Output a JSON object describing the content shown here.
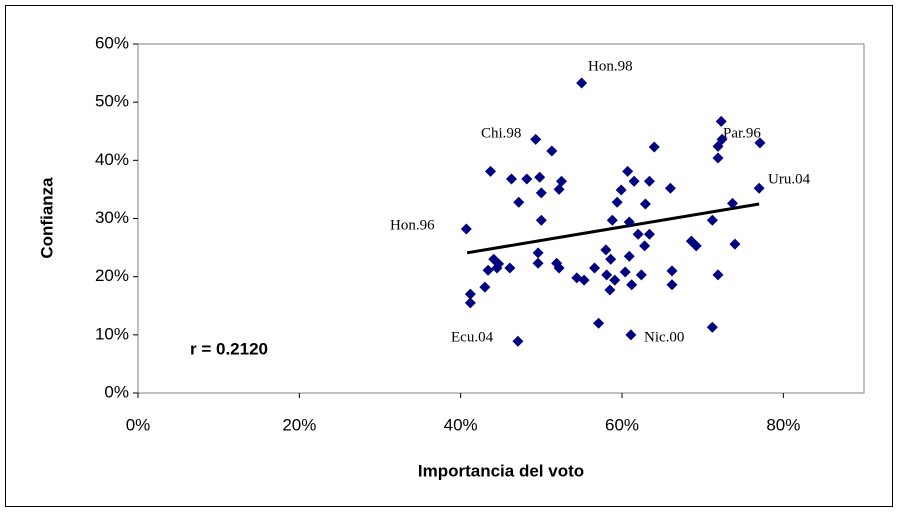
{
  "chart_data": {
    "type": "scatter",
    "xlabel": "Importancia del voto",
    "ylabel": "Confianza",
    "xlim": [
      0,
      90
    ],
    "ylim": [
      0,
      60
    ],
    "xticks": [
      {
        "value": 0,
        "label": "0%"
      },
      {
        "value": 20,
        "label": "20%"
      },
      {
        "value": 40,
        "label": "40%"
      },
      {
        "value": 60,
        "label": "60%"
      },
      {
        "value": 80,
        "label": "80%"
      }
    ],
    "yticks": [
      {
        "value": 0,
        "label": "0%"
      },
      {
        "value": 10,
        "label": "10%"
      },
      {
        "value": 20,
        "label": "20%"
      },
      {
        "value": 30,
        "label": "30%"
      },
      {
        "value": 40,
        "label": "40%"
      },
      {
        "value": 50,
        "label": "50%"
      },
      {
        "value": 60,
        "label": "60%"
      }
    ],
    "color": "#000080",
    "x": [
      55.0,
      72.3,
      72.4,
      71.9,
      77.1,
      71.9,
      49.3,
      51.3,
      64.0,
      43.7,
      46.3,
      48.2,
      49.8,
      52.5,
      52.2,
      60.7,
      61.5,
      63.4,
      59.9,
      50.0,
      47.2,
      59.4,
      62.9,
      66.0,
      77.0,
      73.7,
      71.2,
      50.0,
      58.8,
      60.9,
      62.0,
      63.4,
      60.9,
      62.8,
      58.0,
      49.6,
      68.6,
      69.2,
      74.0,
      58.6,
      44.1,
      44.7,
      49.6,
      51.9,
      52.2,
      56.6,
      58.1,
      60.4,
      62.4,
      66.2,
      71.9,
      44.5,
      46.1,
      43.4,
      54.4,
      55.3,
      59.1,
      61.2,
      58.5,
      66.2,
      43.0,
      41.2,
      41.2,
      57.1,
      61.1,
      71.2,
      47.1,
      40.7
    ],
    "values": [
      53.3,
      46.7,
      43.6,
      42.4,
      43.0,
      40.4,
      43.6,
      41.6,
      42.3,
      38.1,
      36.8,
      36.8,
      37.1,
      36.4,
      35.0,
      38.1,
      36.4,
      36.4,
      34.9,
      34.4,
      32.8,
      32.8,
      32.5,
      35.2,
      35.2,
      32.6,
      29.7,
      29.7,
      29.7,
      29.4,
      27.3,
      27.3,
      23.5,
      25.3,
      24.6,
      24.1,
      26.1,
      25.3,
      25.6,
      23.0,
      23.0,
      22.2,
      22.3,
      22.3,
      21.5,
      21.5,
      20.3,
      20.8,
      20.3,
      21.0,
      20.3,
      21.5,
      21.5,
      21.1,
      19.8,
      19.4,
      19.4,
      18.6,
      17.7,
      18.6,
      18.2,
      17.0,
      15.5,
      12.0,
      10.0,
      11.3,
      8.9,
      28.2
    ],
    "trendline": {
      "x": [
        40.8,
        77.0
      ],
      "values": [
        24.1,
        32.5
      ]
    },
    "annotations": [
      "Hon.98",
      "Chi.98",
      "Par.96",
      "Uru.04",
      "Hon.96",
      "Ecu.04",
      "Nic.00",
      "r = 0.2120"
    ]
  }
}
